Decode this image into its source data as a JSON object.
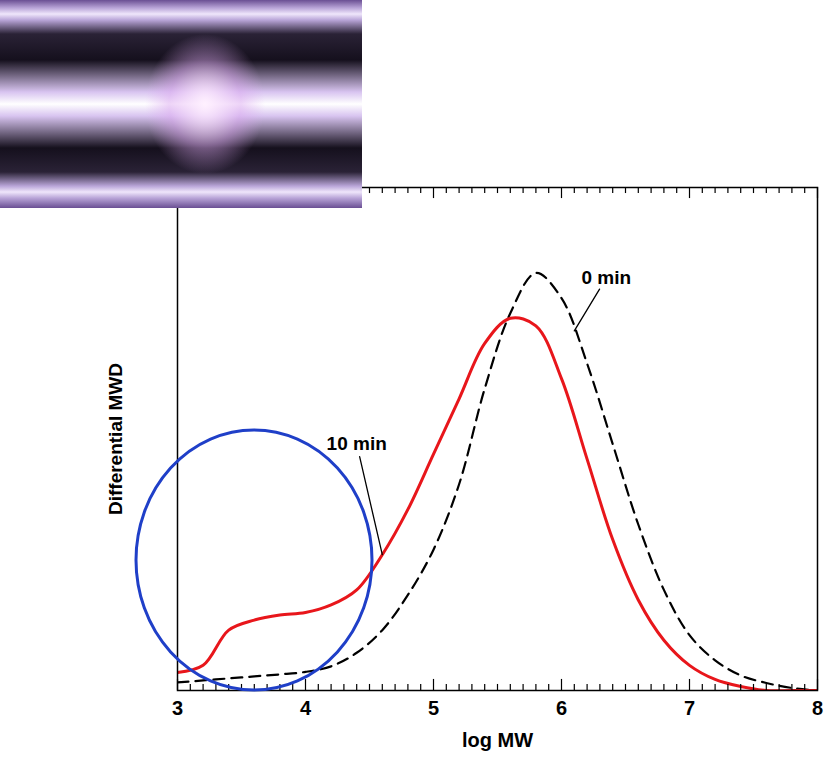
{
  "chart_data": {
    "type": "line",
    "x_label": "log MW",
    "y_label": "Differential MWD",
    "xlim": [
      3,
      8
    ],
    "xticks": [
      3,
      4,
      5,
      6,
      7,
      8
    ],
    "ylim": [
      0,
      1
    ],
    "yticks": [],
    "tick_labels": "x",
    "grid": false,
    "x": [
      3,
      3.2,
      3.4,
      3.6,
      3.8,
      4,
      4.2,
      4.4,
      4.6,
      4.8,
      5,
      5.2,
      5.4,
      5.6,
      5.8,
      6,
      6.2,
      6.4,
      6.6,
      6.8,
      7,
      7.2,
      7.4,
      7.6,
      7.8,
      8
    ],
    "series": [
      {
        "name": "0 min",
        "color": "#000000",
        "line_style": "dashed",
        "values": [
          0.016,
          0.02,
          0.024,
          0.028,
          0.032,
          0.037,
          0.048,
          0.075,
          0.12,
          0.19,
          0.28,
          0.41,
          0.6,
          0.75,
          0.83,
          0.78,
          0.65,
          0.49,
          0.33,
          0.2,
          0.11,
          0.06,
          0.03,
          0.015,
          0.005,
          0
        ]
      },
      {
        "name": "10 min",
        "color": "#e8161b",
        "line_style": "solid",
        "values": [
          0.036,
          0.05,
          0.12,
          0.14,
          0.15,
          0.155,
          0.17,
          0.2,
          0.27,
          0.36,
          0.47,
          0.58,
          0.69,
          0.74,
          0.725,
          0.62,
          0.46,
          0.3,
          0.18,
          0.1,
          0.05,
          0.022,
          0.008,
          0,
          0,
          0
        ]
      }
    ],
    "annotations": [
      {
        "text": "0 min",
        "x": 6.35,
        "y": 0.82,
        "point_x": 6.1,
        "point_y": 0.715
      },
      {
        "text": "10 min",
        "x": 4.4,
        "y": 0.49,
        "point_x": 4.6,
        "point_y": 0.27
      }
    ]
  }
}
